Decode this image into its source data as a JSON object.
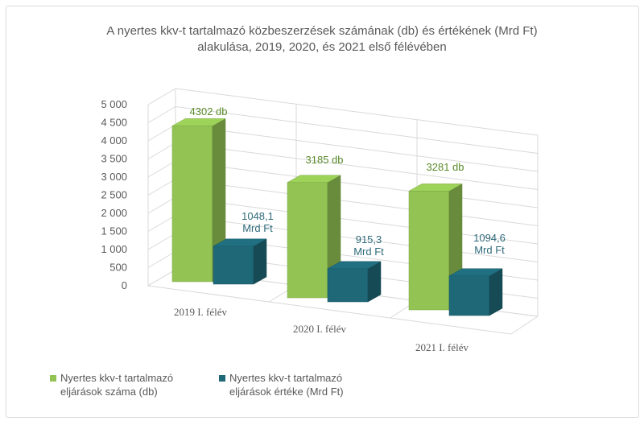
{
  "chart_data": {
    "type": "bar",
    "title_lines": [
      "A nyertes kkv-t tartalmazó közbeszerzések számának (db) és értékének (Mrd Ft)",
      "alakulása, 2019, 2020, és 2021 első félévében"
    ],
    "categories": [
      "2019 I. félév",
      "2020 I. félév",
      "2021 I. félév"
    ],
    "series": [
      {
        "name_lines": [
          "Nyertes kkv-t tartalmazó",
          "eljárások száma (db)"
        ],
        "values": [
          4302,
          3185,
          3281
        ],
        "labels": [
          [
            "4302 db"
          ],
          [
            "3185 db"
          ],
          [
            "3281 db"
          ]
        ],
        "color": "#92c353"
      },
      {
        "name_lines": [
          "Nyertes kkv-t tartalmazó",
          "eljárások értéke (Mrd Ft)"
        ],
        "values": [
          1048.1,
          915.3,
          1094.6
        ],
        "labels": [
          [
            "1048,1",
            "Mrd Ft"
          ],
          [
            "915,3",
            "Mrd Ft"
          ],
          [
            "1094,6",
            "Mrd Ft"
          ]
        ],
        "color": "#1e6878"
      }
    ],
    "yticks": [
      "0",
      "500",
      "1 000",
      "1 500",
      "2 000",
      "2 500",
      "3 000",
      "3 500",
      "4 000",
      "4 500",
      "5 000"
    ],
    "ylim": [
      0,
      5000
    ],
    "grid": true,
    "legend_position": "bottom-left"
  }
}
